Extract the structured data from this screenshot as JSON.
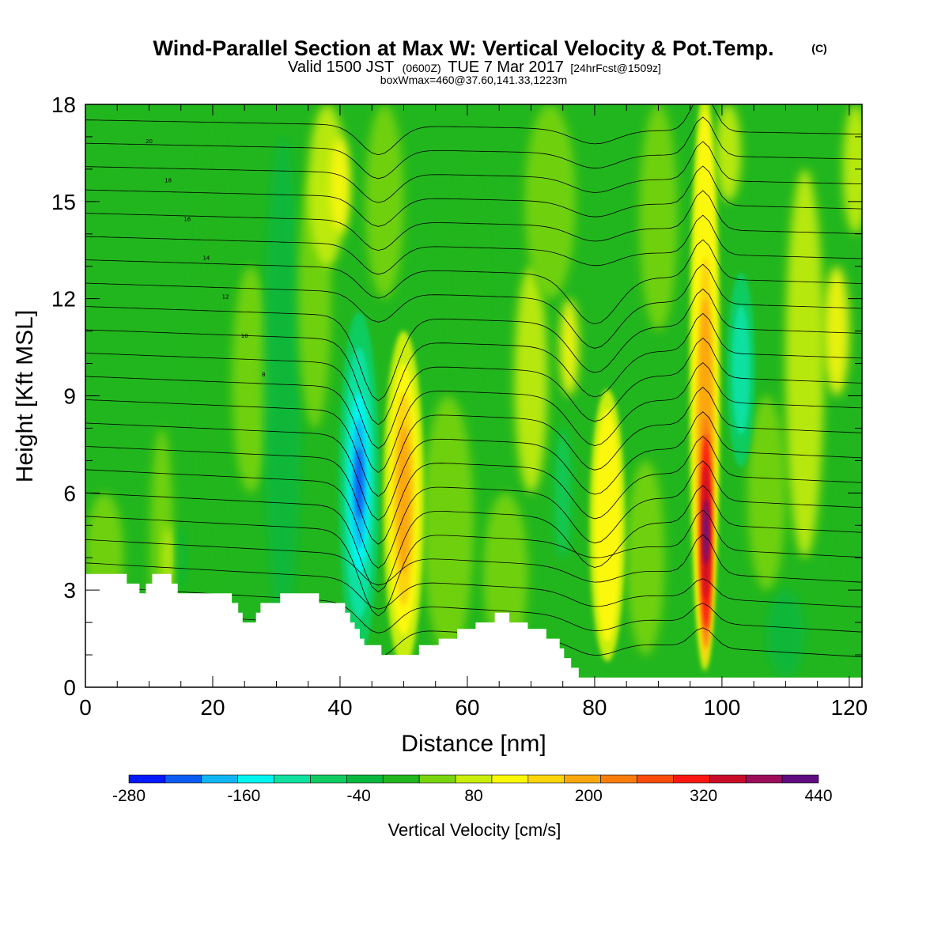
{
  "header": {
    "title": "Wind-Parallel Section at Max W: Vertical Velocity & Pot.Temp.",
    "copyright": "(C)",
    "valid_a": "Valid 1500 JST",
    "valid_b": "(0600Z)",
    "valid_c": "TUE 7 Mar 2017",
    "valid_d": "[24hrFcst@1509z]",
    "box_info": "boxWmax=460@37.60,141.33,1223m"
  },
  "colors": {
    "background_field": "#22b61e",
    "terrain": "#ffffff",
    "contour_line": "#000000"
  },
  "chart_data": {
    "type": "heatmap",
    "subtype": "vertical cross-section with filled contours (vertical velocity) and line contours (potential temperature)",
    "title": "Wind-Parallel Section at Max W: Vertical Velocity & Pot.Temp.",
    "xlabel": "Distance [nm]",
    "ylabel": "Height [Kft MSL]",
    "xlim": [
      0,
      122
    ],
    "ylim": [
      0,
      18
    ],
    "x_ticks": [
      0,
      20,
      40,
      60,
      80,
      100,
      120
    ],
    "y_ticks": [
      0,
      3,
      6,
      9,
      12,
      15,
      18
    ],
    "grid": false,
    "colorbar": {
      "title": "Vertical Velocity [cm/s]",
      "min": -280,
      "max": 440,
      "step": 40,
      "tick_labels": [
        -280,
        -160,
        -40,
        80,
        200,
        320,
        440
      ],
      "colors": [
        "#0418ff",
        "#0a5cf5",
        "#10b6f2",
        "#00f4f0",
        "#10e0a0",
        "#10cc60",
        "#08b83c",
        "#22b61e",
        "#78d40c",
        "#c8ee0a",
        "#fcf808",
        "#fcd40a",
        "#fca80c",
        "#fc7c0c",
        "#fc4c0c",
        "#fc1810",
        "#c80c28",
        "#9c0c58",
        "#600c80"
      ]
    },
    "vertical_velocity_features": [
      {
        "kind": "downdraft",
        "x_center": 43,
        "height_range": [
          1.6,
          11
        ],
        "min_value": -230
      },
      {
        "kind": "updraft",
        "x_center": 50,
        "height_range": [
          1,
          11
        ],
        "max_value": 220
      },
      {
        "kind": "updraft",
        "x_center": 82,
        "height_range": [
          1,
          9
        ],
        "max_value": 120
      },
      {
        "kind": "downdraft",
        "x_center": 103,
        "height_range": [
          7,
          12
        ],
        "min_value": -100
      },
      {
        "kind": "updraft",
        "x_center": 97.5,
        "height_range": [
          0.3,
          18
        ],
        "max_value": 460
      }
    ],
    "theta_contour_labels": [
      "20",
      "18",
      "16",
      "14",
      "12",
      "10",
      "8"
    ],
    "terrain_profile": [
      [
        0,
        3.5
      ],
      [
        6.5,
        3.5
      ],
      [
        6.5,
        3.2
      ],
      [
        8.5,
        3.2
      ],
      [
        8.5,
        2.9
      ],
      [
        9.5,
        2.9
      ],
      [
        9.5,
        3.2
      ],
      [
        10.5,
        3.2
      ],
      [
        10.5,
        3.5
      ],
      [
        13.5,
        3.5
      ],
      [
        13.5,
        3.2
      ],
      [
        14.5,
        3.2
      ],
      [
        14.5,
        2.9
      ],
      [
        23,
        2.9
      ],
      [
        23,
        2.6
      ],
      [
        24,
        2.6
      ],
      [
        24,
        2.3
      ],
      [
        24.7,
        2.3
      ],
      [
        24.7,
        2.0
      ],
      [
        26.8,
        2.0
      ],
      [
        26.8,
        2.3
      ],
      [
        27.5,
        2.3
      ],
      [
        27.5,
        2.6
      ],
      [
        30.6,
        2.6
      ],
      [
        30.6,
        2.9
      ],
      [
        36.7,
        2.9
      ],
      [
        36.7,
        2.6
      ],
      [
        40.8,
        2.6
      ],
      [
        40.8,
        2.3
      ],
      [
        41.6,
        2.3
      ],
      [
        41.6,
        2.0
      ],
      [
        42.3,
        2.0
      ],
      [
        42.3,
        1.8
      ],
      [
        43.1,
        1.8
      ],
      [
        43.1,
        1.5
      ],
      [
        43.8,
        1.5
      ],
      [
        43.8,
        1.3
      ],
      [
        46.5,
        1.3
      ],
      [
        46.5,
        1.0
      ],
      [
        52.4,
        1.0
      ],
      [
        52.4,
        1.3
      ],
      [
        55.5,
        1.3
      ],
      [
        55.5,
        1.5
      ],
      [
        58.4,
        1.5
      ],
      [
        58.4,
        1.8
      ],
      [
        61.3,
        1.8
      ],
      [
        61.3,
        2.0
      ],
      [
        64.3,
        2.0
      ],
      [
        64.3,
        2.3
      ],
      [
        66.6,
        2.3
      ],
      [
        66.6,
        2.0
      ],
      [
        69.5,
        2.0
      ],
      [
        69.5,
        1.8
      ],
      [
        72.4,
        1.8
      ],
      [
        72.4,
        1.5
      ],
      [
        74.5,
        1.5
      ],
      [
        74.5,
        1.2
      ],
      [
        75.2,
        1.2
      ],
      [
        75.2,
        0.9
      ],
      [
        76.3,
        0.9
      ],
      [
        76.3,
        0.6
      ],
      [
        77.5,
        0.6
      ],
      [
        77.5,
        0.3
      ],
      [
        122,
        0.3
      ]
    ]
  }
}
